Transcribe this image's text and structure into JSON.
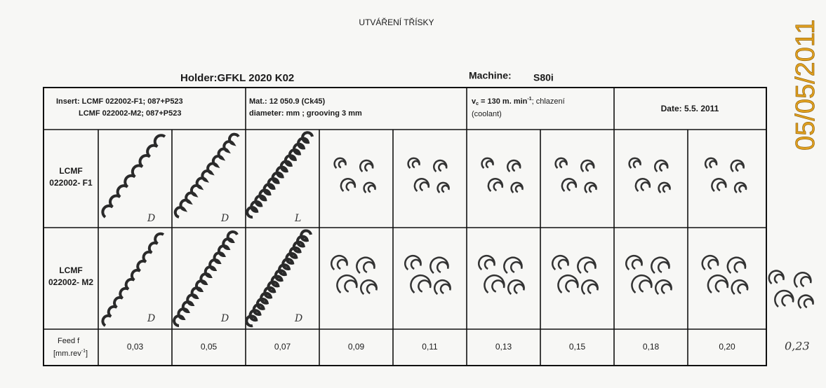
{
  "header": {
    "title": "UTVÁŘENÍ TŘÍSKY",
    "holder": "Holder:GFKL 2020 K02",
    "machine_label": "Machine:",
    "machine": "S80i",
    "date_stamp": "05/05/2011"
  },
  "table": {
    "insert": [
      "Insert: LCMF 022002-F1; 087+P523",
      "LCMF 022002-M2; 087+P523"
    ],
    "material": [
      "Mat.: 12 050.9 (Ck45)",
      "diameter:  mm ; grooving 3 mm"
    ],
    "cutting_speed": {
      "symbol": "v",
      "subscript": "c",
      "text": "= 130 m. min",
      "exponent": "-1",
      "suffix": ";   chlazení",
      "note": "(coolant)"
    },
    "date": "Date: 5.5. 2011",
    "rows": [
      [
        "LCMF",
        "022002- F1"
      ],
      [
        "LCMF",
        "022002- M2"
      ]
    ],
    "feed_label": {
      "name": "Feed f",
      "unit": "[mm.rev",
      "exponent": "-1",
      "close": "]"
    },
    "feeds": [
      "0,03",
      "0,05",
      "0,07",
      "0,09",
      "0,11",
      "0,13",
      "0,15",
      "0,18",
      "0,20"
    ],
    "extra_feed": "0,23",
    "marks_f1": [
      "D",
      "D",
      "L"
    ],
    "marks_m2": [
      "D",
      "D",
      "D"
    ]
  }
}
